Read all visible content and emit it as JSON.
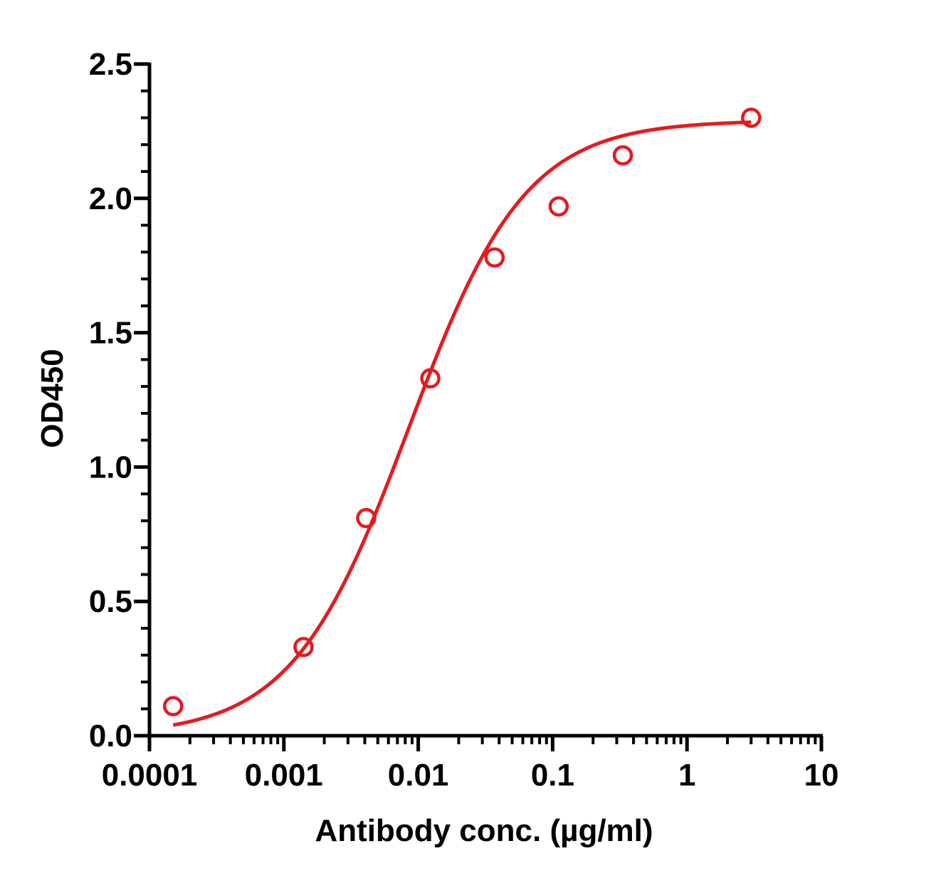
{
  "chart_data": {
    "type": "scatter",
    "title": "",
    "xlabel": "Antibody conc. (µg/ml)",
    "ylabel": "OD450",
    "x_scale": "log",
    "xlim": [
      0.0001,
      10
    ],
    "ylim": [
      0,
      2.5
    ],
    "x_ticks": [
      {
        "value": 0.0001,
        "label": "0.0001"
      },
      {
        "value": 0.001,
        "label": "0.001"
      },
      {
        "value": 0.01,
        "label": "0.01"
      },
      {
        "value": 0.1,
        "label": "0.1"
      },
      {
        "value": 1,
        "label": "1"
      },
      {
        "value": 10,
        "label": "10"
      }
    ],
    "y_ticks": [
      {
        "value": 0,
        "label": "0.0"
      },
      {
        "value": 0.5,
        "label": "0.5"
      },
      {
        "value": 1.0,
        "label": "1.0"
      },
      {
        "value": 1.5,
        "label": "1.5"
      },
      {
        "value": 2.0,
        "label": "2.0"
      },
      {
        "value": 2.5,
        "label": "2.5"
      }
    ],
    "grid": false,
    "legend": "none",
    "series": [
      {
        "color": "#e8191c",
        "marker": "open-circle",
        "points": [
          {
            "x": 0.00015,
            "y": 0.11
          },
          {
            "x": 0.0014,
            "y": 0.33
          },
          {
            "x": 0.0041,
            "y": 0.81
          },
          {
            "x": 0.0123,
            "y": 1.33
          },
          {
            "x": 0.037,
            "y": 1.78
          },
          {
            "x": 0.111,
            "y": 1.97
          },
          {
            "x": 0.333,
            "y": 2.16
          },
          {
            "x": 3.0,
            "y": 2.3
          }
        ],
        "fit": {
          "model": "4PL",
          "bottom": 0.0,
          "top": 2.29,
          "ec50": 0.0085,
          "hill": 1.0,
          "x_range": [
            0.00015,
            3.0
          ]
        }
      }
    ]
  }
}
